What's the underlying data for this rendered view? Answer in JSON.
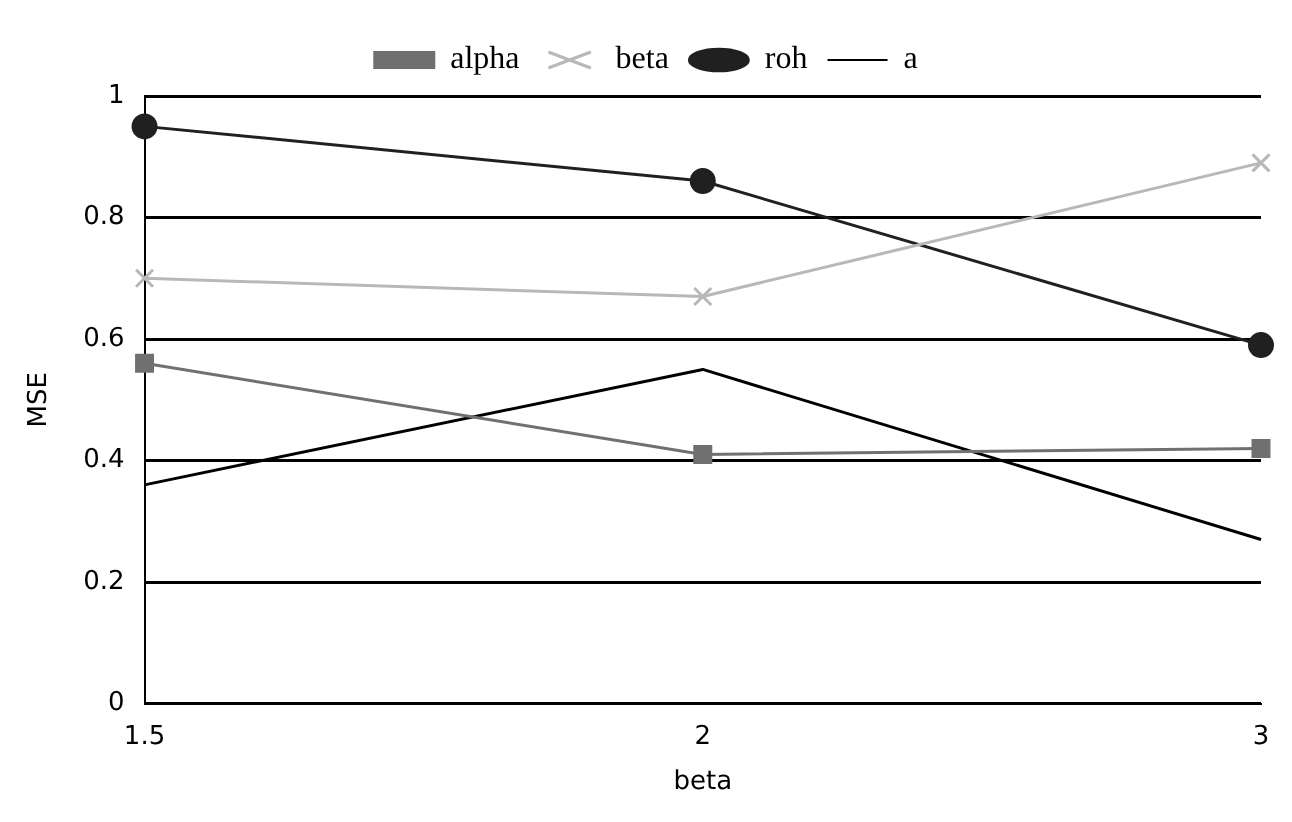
{
  "chart_data": {
    "type": "line",
    "xlabel": "beta",
    "ylabel": "MSE",
    "categories": [
      "1.5",
      "2",
      "3"
    ],
    "series": [
      {
        "name": "alpha",
        "color": "#707070",
        "marker": "square",
        "values": [
          0.56,
          0.41,
          0.42
        ]
      },
      {
        "name": "beta",
        "color": "#b8b8b8",
        "marker": "cross",
        "values": [
          0.7,
          0.67,
          0.89
        ]
      },
      {
        "name": "roh",
        "color": "#202020",
        "marker": "circle",
        "values": [
          0.95,
          0.86,
          0.59
        ]
      },
      {
        "name": "a",
        "color": "#000000",
        "marker": "none",
        "values": [
          0.36,
          0.55,
          0.27
        ]
      }
    ],
    "ylim": [
      0,
      1
    ],
    "yticks": [
      0,
      0.2,
      0.4,
      0.6,
      0.8,
      1
    ],
    "grid": "y",
    "legend": "top"
  }
}
